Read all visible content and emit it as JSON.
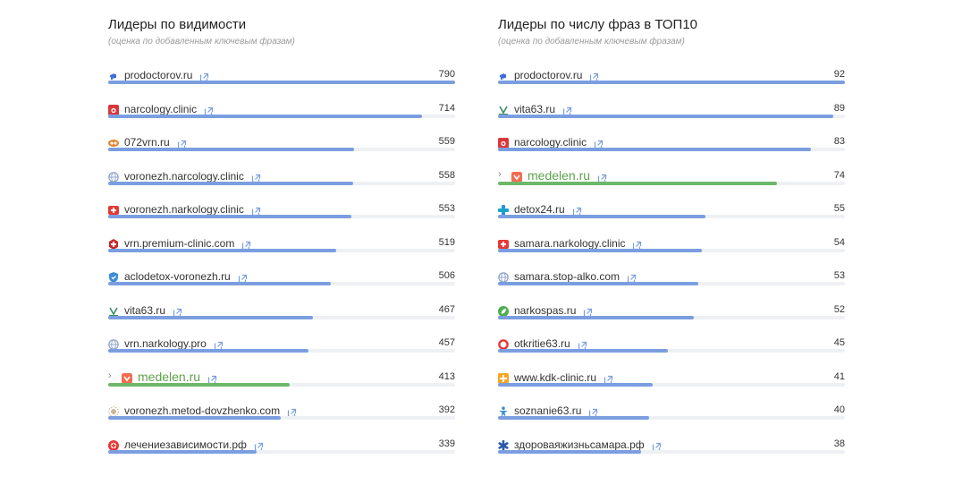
{
  "panels": [
    {
      "id": "visibility",
      "title": "Лидеры по видимости",
      "subtitle": "(оценка по добавленным ключевым фразам)",
      "rows": [
        {
          "domain": "prodoctorov.ru",
          "value": 790,
          "icon": "megaphone-icon",
          "color": "#3f6fd8"
        },
        {
          "domain": "narcology.clinic",
          "value": 714,
          "icon": "camera-icon",
          "color": "#d9373c"
        },
        {
          "domain": "072vrn.ru",
          "value": 559,
          "icon": "eyes-icon",
          "color": "#e8842c"
        },
        {
          "domain": "voronezh.narcology.clinic",
          "value": 558,
          "icon": "globe-icon",
          "color": "#8aa0c8"
        },
        {
          "domain": "voronezh.narkology.clinic",
          "value": 553,
          "icon": "medical-bag-icon",
          "color": "#e53935"
        },
        {
          "domain": "vrn.premium-clinic.com",
          "value": 519,
          "icon": "hexagon-cross-icon",
          "color": "#c62828"
        },
        {
          "domain": "aclodetox-voronezh.ru",
          "value": 506,
          "icon": "shield-icon",
          "color": "#3d8fd6"
        },
        {
          "domain": "vita63.ru",
          "value": 467,
          "icon": "vita-logo-icon",
          "color": "#3a8c66"
        },
        {
          "domain": "vrn.narkology.pro",
          "value": 457,
          "icon": "globe-icon",
          "color": "#8aa0c8"
        },
        {
          "domain": "medelen.ru",
          "value": 413,
          "icon": "medelen-logo-icon",
          "color": "#f26c4f",
          "highlight": true
        },
        {
          "domain": "voronezh.metod-dovzhenko.com",
          "value": 392,
          "icon": "sun-icon",
          "color": "#c9b89a"
        },
        {
          "domain": "лечениезависимости.рф",
          "value": 339,
          "icon": "flower-cross-icon",
          "color": "#e53935"
        }
      ]
    },
    {
      "id": "top10",
      "title": "Лидеры по числу фраз в ТОП10",
      "subtitle": "(оценка по добавленным ключевым фразам)",
      "rows": [
        {
          "domain": "prodoctorov.ru",
          "value": 92,
          "icon": "megaphone-icon",
          "color": "#3f6fd8"
        },
        {
          "domain": "vita63.ru",
          "value": 89,
          "icon": "vita-logo-icon",
          "color": "#3a8c66"
        },
        {
          "domain": "narcology.clinic",
          "value": 83,
          "icon": "camera-icon",
          "color": "#d9373c"
        },
        {
          "domain": "medelen.ru",
          "value": 74,
          "icon": "medelen-logo-icon",
          "color": "#f26c4f",
          "highlight": true
        },
        {
          "domain": "detox24.ru",
          "value": 55,
          "icon": "plus-icon",
          "color": "#2f8fe0"
        },
        {
          "domain": "samara.narkology.clinic",
          "value": 54,
          "icon": "medical-bag-icon",
          "color": "#e53935"
        },
        {
          "domain": "samara.stop-alko.com",
          "value": 53,
          "icon": "globe-icon",
          "color": "#8aa0c8"
        },
        {
          "domain": "narkospas.ru",
          "value": 52,
          "icon": "leaf-icon",
          "color": "#4caf50"
        },
        {
          "domain": "otkritie63.ru",
          "value": 45,
          "icon": "ring-icon",
          "color": "#e53935"
        },
        {
          "domain": "www.kdk-clinic.ru",
          "value": 41,
          "icon": "cross-square-icon",
          "color": "#f5a623"
        },
        {
          "domain": "soznanie63.ru",
          "value": 40,
          "icon": "figure-icon",
          "color": "#3d8fd6"
        },
        {
          "domain": "здороваяжизньсамара.рф",
          "value": 38,
          "icon": "asterisk-icon",
          "color": "#2b5aa8"
        }
      ]
    }
  ]
}
